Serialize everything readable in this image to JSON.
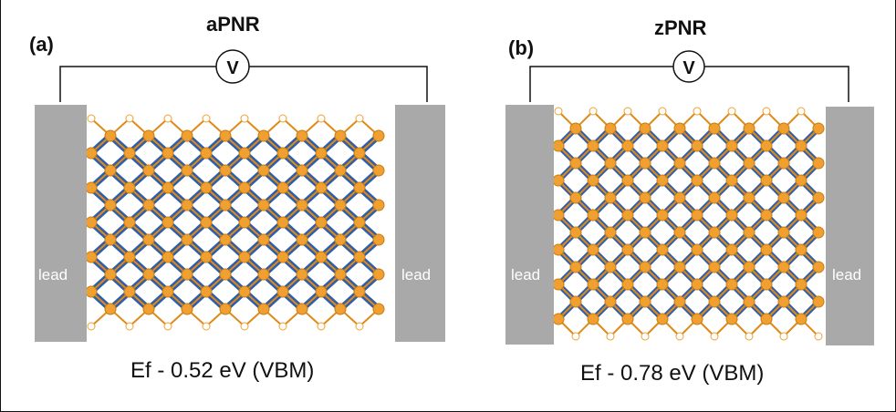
{
  "panels": [
    {
      "label": "(a)",
      "title": "aPNR",
      "meter_symbol": "V",
      "left_lead_label": "lead",
      "right_lead_label": "lead",
      "caption": "Ef - 0.52 eV (VBM)",
      "edge": "armchair"
    },
    {
      "label": "(b)",
      "title": "zPNR",
      "meter_symbol": "V",
      "left_lead_label": "lead",
      "right_lead_label": "lead",
      "caption": "Ef - 0.78 eV (VBM)",
      "edge": "zigzag"
    }
  ],
  "colors": {
    "atom": "#f0a030",
    "bond": "#e08a1a",
    "current": "#2f5ea8",
    "current_light": "#6aa6d6",
    "lead": "#a9a9a9",
    "hydrogen": "#ffffff"
  }
}
